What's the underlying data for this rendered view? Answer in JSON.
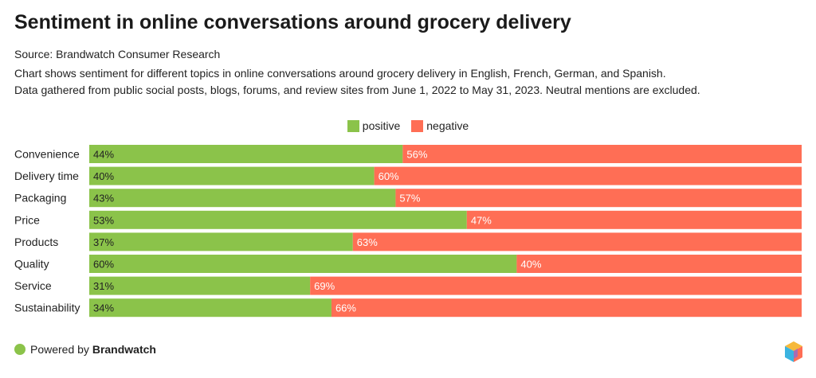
{
  "header": {
    "title": "Sentiment in online conversations around grocery delivery",
    "source": "Source: Brandwatch Consumer Research",
    "description_line1": "Chart shows sentiment for different topics in online conversations around grocery delivery in English, French, German, and Spanish.",
    "description_line2": "Data gathered from public social posts, blogs, forums, and review sites from June 1, 2022 to May 31, 2023. Neutral mentions are excluded."
  },
  "legend": {
    "positive": "positive",
    "negative": "negative"
  },
  "colors": {
    "positive": "#8bc34a",
    "negative": "#ff6e55"
  },
  "footer": {
    "prefix": "Powered by ",
    "brand": "Brandwatch"
  },
  "chart_data": {
    "type": "bar",
    "orientation": "horizontal",
    "stacked": true,
    "title": "Sentiment in online conversations around grocery delivery",
    "categories": [
      "Convenience",
      "Delivery time",
      "Packaging",
      "Price",
      "Products",
      "Quality",
      "Service",
      "Sustainability"
    ],
    "series": [
      {
        "name": "positive",
        "values": [
          44,
          40,
          43,
          53,
          37,
          60,
          31,
          34
        ],
        "labels": [
          "44%",
          "40%",
          "43%",
          "53%",
          "37%",
          "60%",
          "31%",
          "34%"
        ]
      },
      {
        "name": "negative",
        "values": [
          56,
          60,
          57,
          47,
          63,
          40,
          69,
          66
        ],
        "labels": [
          "56%",
          "60%",
          "57%",
          "47%",
          "63%",
          "40%",
          "69%",
          "66%"
        ]
      }
    ],
    "xlim": [
      0,
      100
    ],
    "legend": "top-center"
  }
}
